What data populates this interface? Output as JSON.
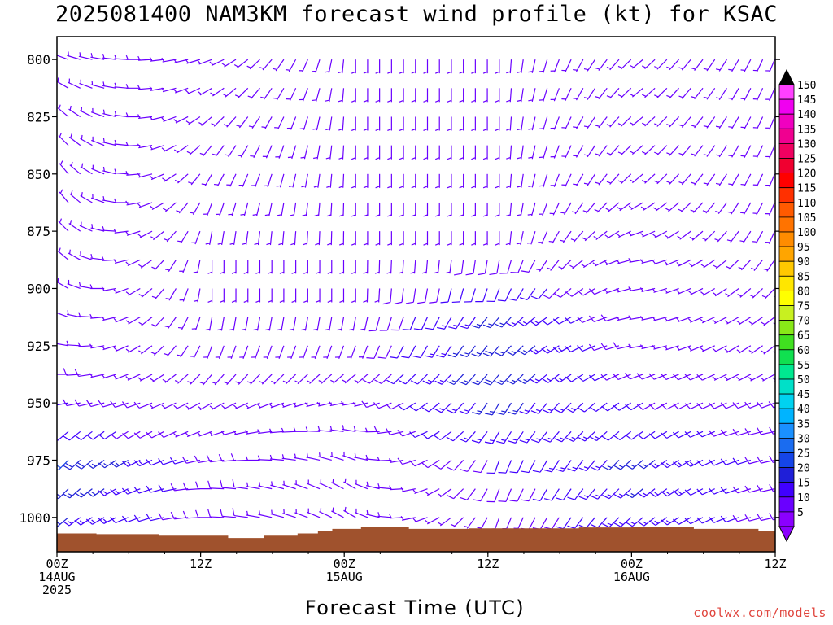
{
  "title": "2025081400 NAM3KM forecast wind profile (kt) for KSAC",
  "credit": "coolwx.com/models",
  "colors": {
    "ground": "#a0522d",
    "credit": "#e0443c"
  },
  "chart_data": {
    "type": "wind barb profile",
    "xlabel": "Forecast Time (UTC)",
    "ylabel": "",
    "x_range_hours": [
      0,
      60
    ],
    "y_range_hpa": [
      790,
      1015
    ],
    "y_ticks": [
      "800",
      "825",
      "850",
      "875",
      "900",
      "925",
      "950",
      "975",
      "1000"
    ],
    "x_ticks": [
      {
        "hour": 0,
        "lines": [
          "00Z",
          "14AUG",
          "2025"
        ]
      },
      {
        "hour": 12,
        "lines": [
          "12Z"
        ]
      },
      {
        "hour": 24,
        "lines": [
          "00Z",
          "15AUG"
        ]
      },
      {
        "hour": 36,
        "lines": [
          "12Z"
        ]
      },
      {
        "hour": 48,
        "lines": [
          "00Z",
          "16AUG"
        ]
      },
      {
        "hour": 60,
        "lines": [
          "12Z"
        ]
      }
    ],
    "colorbar": {
      "units": "kt",
      "labels": [
        "5",
        "10",
        "15",
        "20",
        "25",
        "30",
        "35",
        "40",
        "45",
        "50",
        "55",
        "60",
        "65",
        "70",
        "75",
        "80",
        "85",
        "90",
        "95",
        "100",
        "105",
        "110",
        "115",
        "120",
        "125",
        "130",
        "135",
        "140",
        "145",
        "150"
      ],
      "colors": [
        "#8b00ff",
        "#6a00ff",
        "#4000ff",
        "#1f1fd8",
        "#1545e8",
        "#1a6cf0",
        "#1a90ff",
        "#00b4ff",
        "#00d2f0",
        "#00e0c8",
        "#00e890",
        "#10e050",
        "#40e020",
        "#88e818",
        "#c8f020",
        "#ffff00",
        "#ffe600",
        "#ffc800",
        "#ffa500",
        "#ff8c00",
        "#ff7300",
        "#ff5a00",
        "#ff3000",
        "#ff0000",
        "#f00030",
        "#f00060",
        "#f00090",
        "#f000c0",
        "#f000f0",
        "#ff40ff"
      ]
    },
    "ground_level_hpa": [
      {
        "hour": 0,
        "p": 1007
      },
      {
        "hour": 3.3,
        "p": 1007.3
      },
      {
        "hour": 8.5,
        "p": 1008
      },
      {
        "hour": 14.3,
        "p": 1009
      },
      {
        "hour": 17.3,
        "p": 1008
      },
      {
        "hour": 20.1,
        "p": 1007
      },
      {
        "hour": 21.8,
        "p": 1006
      },
      {
        "hour": 23.0,
        "p": 1005
      },
      {
        "hour": 25.4,
        "p": 1004
      },
      {
        "hour": 29.4,
        "p": 1005
      },
      {
        "hour": 34.4,
        "p": 1004.8
      },
      {
        "hour": 36.8,
        "p": 1004.8
      },
      {
        "hour": 43.6,
        "p": 1004.4
      },
      {
        "hour": 48.0,
        "p": 1004
      },
      {
        "hour": 53.2,
        "p": 1005
      },
      {
        "hour": 58.6,
        "p": 1006
      },
      {
        "hour": 60,
        "p": 1007
      }
    ],
    "wind_field": {
      "time_step_hours": 1,
      "pressure_step_hpa": 12.5,
      "description": "wind barbs at each forecast hour; direction in degrees (from), speed in kt",
      "levels_hpa": [
        1000,
        987.5,
        975,
        962.5,
        950,
        937.5,
        925,
        912.5,
        900,
        887.5,
        875,
        862.5,
        850,
        837.5,
        825,
        812.5,
        800
      ],
      "sample_profiles": [
        {
          "hour": 0,
          "dir": [
            230,
            225,
            225,
            230,
            260,
            270,
            280,
            290,
            300,
            310,
            315,
            320,
            320,
            315,
            310,
            300,
            290
          ],
          "spd": [
            15,
            18,
            20,
            12,
            10,
            8,
            6,
            6,
            6,
            6,
            6,
            6,
            6,
            6,
            6,
            6,
            6
          ]
        },
        {
          "hour": 12,
          "dir": [
            270,
            270,
            260,
            250,
            240,
            220,
            200,
            190,
            180,
            180,
            190,
            200,
            210,
            220,
            230,
            240,
            250
          ],
          "spd": [
            8,
            8,
            8,
            6,
            6,
            5,
            5,
            5,
            5,
            5,
            5,
            5,
            5,
            5,
            5,
            5,
            5
          ]
        },
        {
          "hour": 24,
          "dir": [
            300,
            300,
            290,
            280,
            260,
            230,
            200,
            190,
            180,
            180,
            180,
            180,
            180,
            180,
            180,
            180,
            180
          ],
          "spd": [
            6,
            6,
            6,
            6,
            6,
            6,
            6,
            6,
            6,
            6,
            6,
            6,
            6,
            6,
            6,
            6,
            6
          ]
        },
        {
          "hour": 36,
          "dir": [
            200,
            200,
            200,
            210,
            210,
            220,
            220,
            220,
            200,
            190,
            180,
            180,
            180,
            180,
            180,
            180,
            180
          ],
          "spd": [
            6,
            8,
            10,
            14,
            16,
            18,
            18,
            16,
            12,
            8,
            6,
            6,
            6,
            6,
            6,
            6,
            6
          ]
        },
        {
          "hour": 48,
          "dir": [
            230,
            230,
            230,
            235,
            240,
            250,
            260,
            260,
            260,
            260,
            250,
            240,
            230,
            230,
            230,
            230,
            230
          ],
          "spd": [
            14,
            15,
            16,
            12,
            10,
            8,
            7,
            6,
            6,
            6,
            6,
            6,
            6,
            6,
            6,
            6,
            6
          ]
        },
        {
          "hour": 60,
          "dir": [
            260,
            260,
            260,
            260,
            250,
            240,
            230,
            230,
            220,
            210,
            200,
            200,
            200,
            200,
            200,
            200,
            200
          ],
          "spd": [
            8,
            8,
            8,
            8,
            8,
            7,
            7,
            6,
            6,
            6,
            6,
            6,
            6,
            6,
            6,
            6,
            6
          ]
        }
      ]
    }
  }
}
